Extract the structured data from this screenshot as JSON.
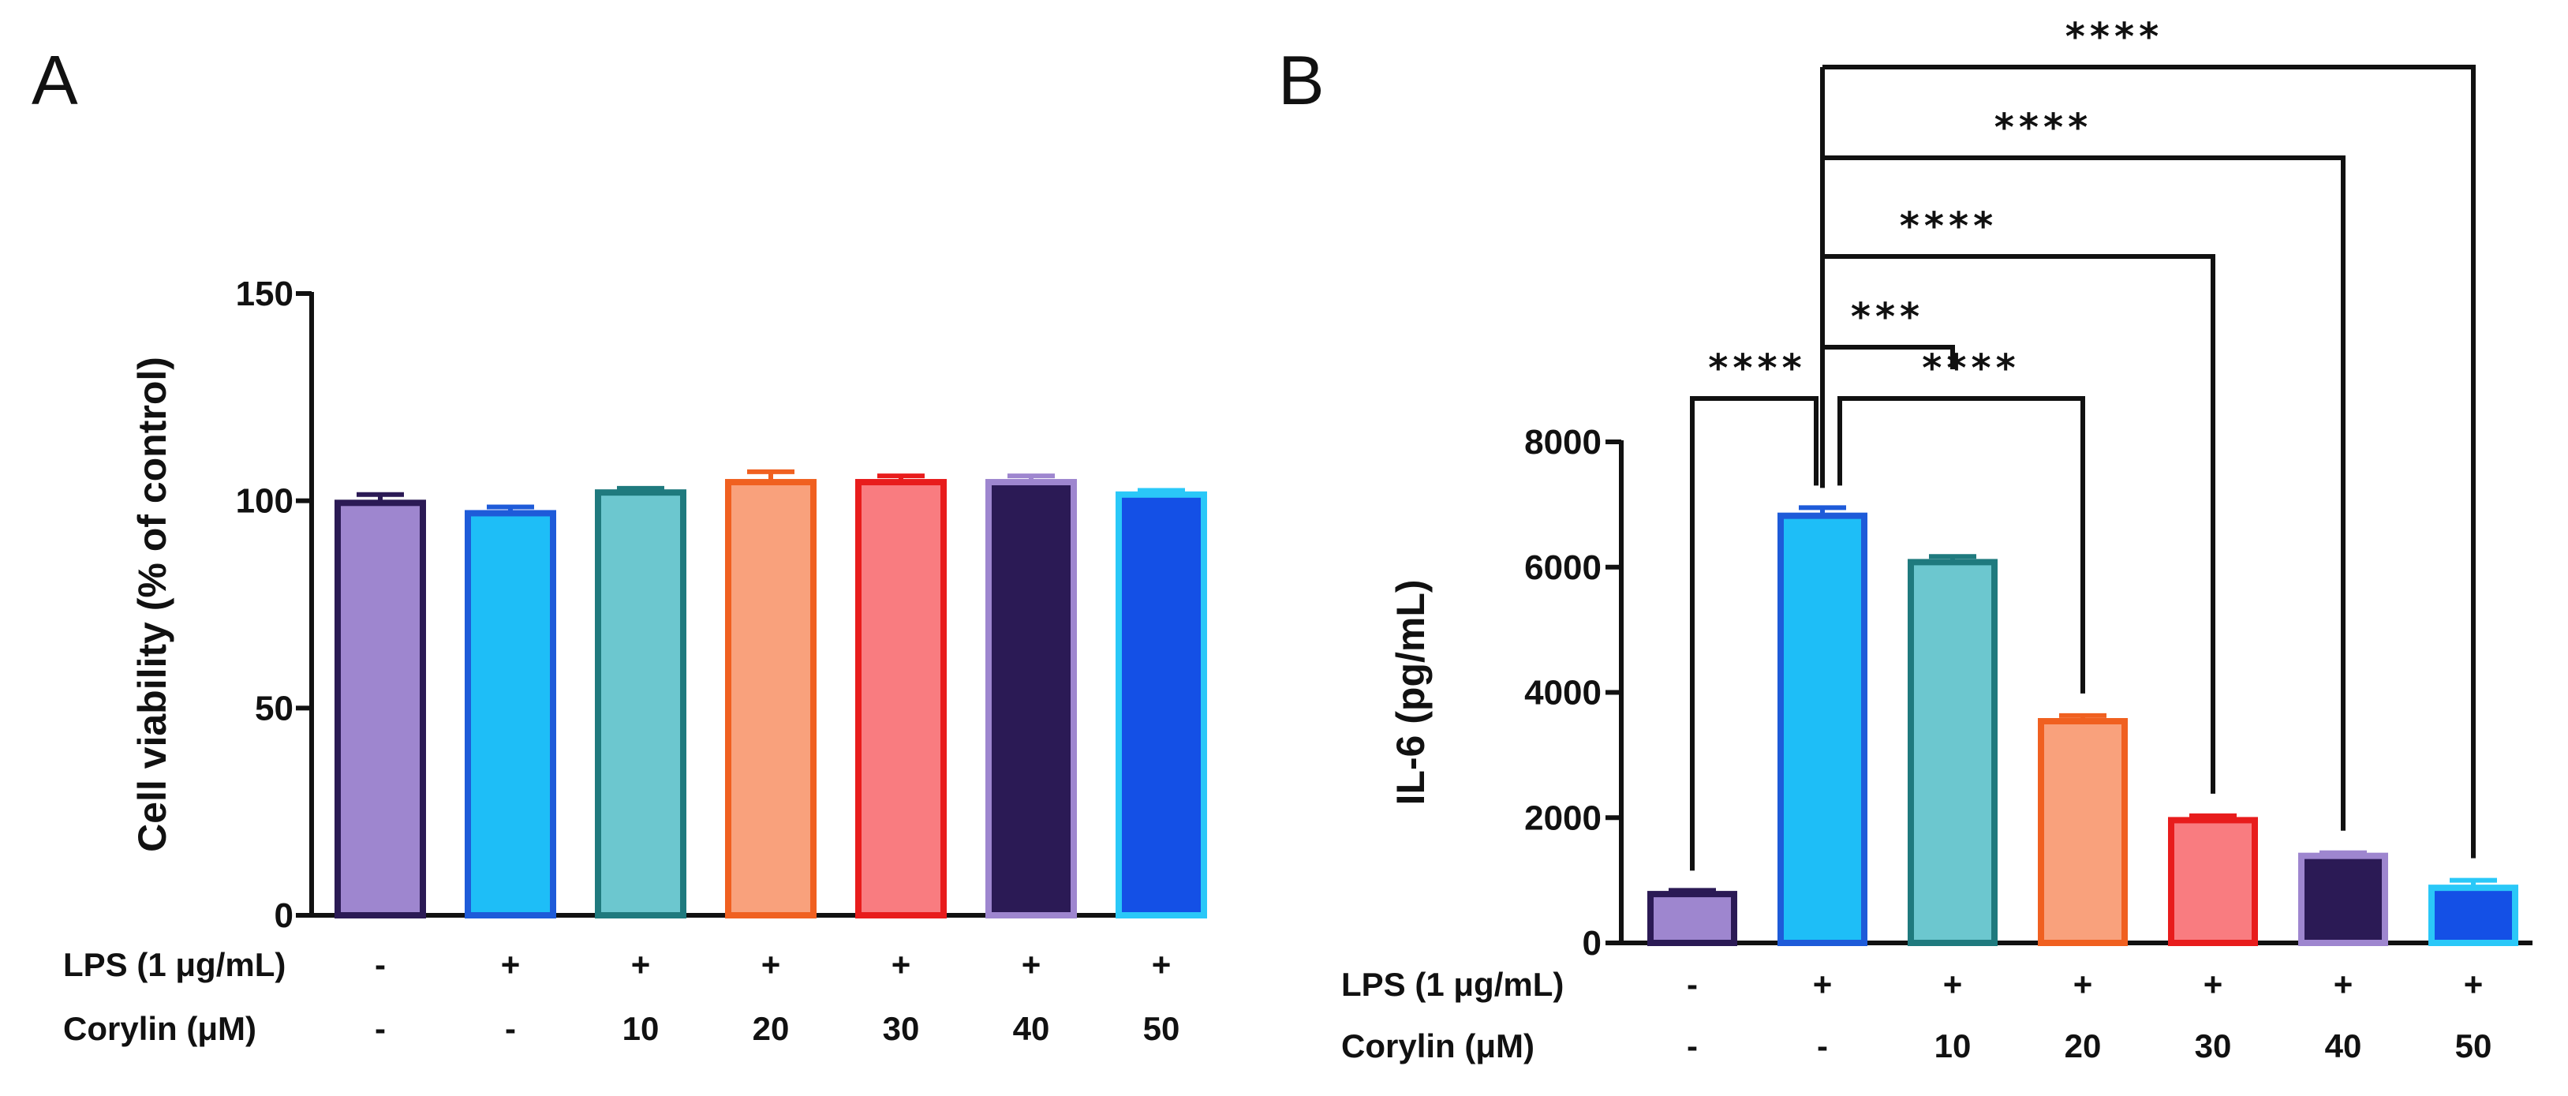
{
  "panels": {
    "a_letter": "A",
    "b_letter": "B"
  },
  "chart_data": [
    {
      "type": "bar",
      "panel": "A",
      "ylabel": "Cell viability (% of control)",
      "ylim": [
        0,
        150
      ],
      "yticks": [
        "0",
        "50",
        "100",
        "150"
      ],
      "values": [
        99.5,
        97,
        102,
        104.5,
        104.5,
        104.5,
        101.5
      ],
      "errors": [
        2,
        1.5,
        1,
        2.5,
        1.5,
        1.5,
        1
      ],
      "fills": [
        "#9E86CF",
        "#1EBEF7",
        "#6CC7CF",
        "#F9A17C",
        "#F97C80",
        "#2B1A55",
        "#1450E6"
      ],
      "borders": [
        "#2B1A55",
        "#1E5BD9",
        "#1F7A7E",
        "#F06020",
        "#E81C1C",
        "#9E86CF",
        "#2AC8F8"
      ],
      "conditions": [
        {
          "label": "LPS (1 μg/mL)",
          "values": [
            "-",
            "+",
            "+",
            "+",
            "+",
            "+",
            "+"
          ]
        },
        {
          "label": "Corylin (μM)",
          "values": [
            "-",
            "-",
            "10",
            "20",
            "30",
            "40",
            "50"
          ]
        }
      ]
    },
    {
      "type": "bar",
      "panel": "B",
      "ylabel": "IL-6 (pg/mL)",
      "ylim": [
        0,
        8000
      ],
      "yticks": [
        "0",
        "2000",
        "4000",
        "6000",
        "8000"
      ],
      "values": [
        780,
        6820,
        6080,
        3540,
        1960,
        1390,
        880
      ],
      "errors": [
        60,
        130,
        90,
        90,
        70,
        50,
        120
      ],
      "fills": [
        "#9E86CF",
        "#1EBEF7",
        "#6CC7CF",
        "#F9A17C",
        "#F97C80",
        "#2B1A55",
        "#1450E6"
      ],
      "borders": [
        "#2B1A55",
        "#1E5BD9",
        "#1F7A7E",
        "#F06020",
        "#E81C1C",
        "#9E86CF",
        "#2AC8F8"
      ],
      "conditions": [
        {
          "label": "LPS (1 μg/mL)",
          "values": [
            "-",
            "+",
            "+",
            "+",
            "+",
            "+",
            "+"
          ]
        },
        {
          "label": "Corylin (μM)",
          "values": [
            "-",
            "-",
            "10",
            "20",
            "30",
            "40",
            "50"
          ]
        }
      ],
      "significance": [
        {
          "from": 0,
          "to": 1,
          "label": "****"
        },
        {
          "from": 1,
          "to": 3,
          "label": "****"
        },
        {
          "from": 1,
          "to": 2,
          "label": "***"
        },
        {
          "from": 1,
          "to": 4,
          "label": "****"
        },
        {
          "from": 1,
          "to": 5,
          "label": "****"
        },
        {
          "from": 1,
          "to": 6,
          "label": "****"
        }
      ]
    }
  ]
}
